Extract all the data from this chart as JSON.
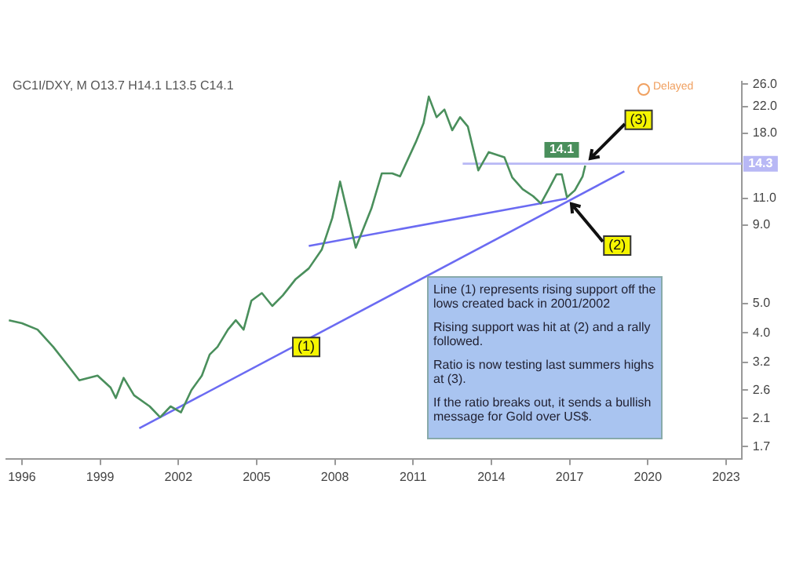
{
  "chart_data": {
    "type": "line",
    "title": "GC1I/DXY, M",
    "subtitle": "O13.7 H14.1 L13.5 C14.1",
    "log": "y",
    "legend": false,
    "grid": false,
    "marker": "none",
    "line_style": "solid",
    "tick_labels": "xy",
    "xlim": [
      1995.4,
      2023.6
    ],
    "xticks": [
      1996,
      1999,
      2002,
      2005,
      2008,
      2011,
      2014,
      2017,
      2020,
      2023
    ],
    "ylim": [
      1.55,
      26.6
    ],
    "yticks": [
      {
        "value": 1.7,
        "label": "1.7"
      },
      {
        "value": 2.1,
        "label": "2.1"
      },
      {
        "value": 2.6,
        "label": "2.6"
      },
      {
        "value": 3.2,
        "label": "3.2"
      },
      {
        "value": 4,
        "label": "4.0"
      },
      {
        "value": 5,
        "label": "5.0"
      },
      {
        "value": 9,
        "label": "9.0"
      },
      {
        "value": 11,
        "label": "11.0"
      },
      {
        "value": 18,
        "label": "18.0"
      },
      {
        "value": 22,
        "label": "22.0"
      },
      {
        "value": 26,
        "label": "26.0"
      }
    ],
    "series": [
      {
        "color": "#4a8f5c",
        "x": [
          1995.5,
          1996,
          1996.6,
          1997.2,
          1997.8,
          1998.2,
          1998.9,
          1999.4,
          1999.6,
          1999.9,
          2000.3,
          2000.9,
          2001.3,
          2001.7,
          2002.1,
          2002.5,
          2002.9,
          2003.2,
          2003.5,
          2003.9,
          2004.2,
          2004.5,
          2004.8,
          2005.2,
          2005.6,
          2006,
          2006.5,
          2007,
          2007.5,
          2007.9,
          2008.2,
          2008.8,
          2009.4,
          2009.8,
          2010.2,
          2010.5,
          2011.1,
          2011.4,
          2011.6,
          2011.9,
          2012.2,
          2012.5,
          2012.8,
          2013.1,
          2013.5,
          2013.9,
          2014.5,
          2014.8,
          2015.2,
          2015.6,
          2015.9,
          2016.2,
          2016.5,
          2016.7,
          2016.9,
          2017.2,
          2017.5,
          2017.6
        ],
        "values": [
          4.4,
          4.3,
          4.1,
          3.6,
          3.1,
          2.8,
          2.9,
          2.65,
          2.45,
          2.85,
          2.5,
          2.3,
          2.12,
          2.3,
          2.2,
          2.6,
          2.9,
          3.4,
          3.6,
          4.1,
          4.4,
          4.1,
          5.1,
          5.4,
          4.9,
          5.3,
          6,
          6.5,
          7.5,
          9.5,
          12.5,
          7.6,
          10.2,
          13.3,
          13.3,
          13,
          16.8,
          19.4,
          23.7,
          20.3,
          21.5,
          18.4,
          20.3,
          18.9,
          13.6,
          15.6,
          15,
          12.9,
          11.8,
          11.2,
          10.6,
          11.8,
          13.2,
          13.2,
          11.1,
          11.7,
          13,
          14.1
        ],
        "value_labels": [
          null,
          null,
          null,
          null,
          null,
          null,
          null,
          null,
          null,
          null,
          null,
          null,
          null,
          null,
          null,
          null,
          null,
          null,
          null,
          null,
          null,
          null,
          null,
          null,
          null,
          null,
          null,
          null,
          null,
          null,
          null,
          null,
          null,
          null,
          null,
          null,
          null,
          null,
          null,
          null,
          null,
          null,
          null,
          null,
          null,
          null,
          null,
          null,
          null,
          null,
          null,
          null,
          null,
          null,
          null,
          null,
          null,
          "14.1"
        ]
      },
      {
        "color": "#6b6bf2",
        "x": [
          2000.5,
          2019.1
        ],
        "values": [
          1.95,
          13.5
        ]
      },
      {
        "color": "#6b6bf2",
        "x": [
          2007,
          2016.9
        ],
        "values": [
          7.7,
          11
        ]
      },
      {
        "color": "#b8b8f5",
        "x": [
          2012.9,
          2023.6
        ],
        "values": [
          14.3,
          14.3
        ],
        "value_labels": [
          null,
          "14.3"
        ]
      }
    ],
    "annotations": [
      {
        "text": "(1)",
        "x": 2006.9,
        "y": 3.6
      },
      {
        "text": "(2)",
        "x": 2016.9,
        "y": 11
      },
      {
        "text": "(3)",
        "x": 2017.6,
        "y": 14.3
      },
      "Line (1) represents rising support off the lows created back in 2001/2002\n\nRising support was hit at (2) and a rally followed.\n\nRatio is now testing last summers highs at (3).\n\nIf the ratio breaks out, it sends a bullish message for Gold over US$.",
      "Delayed"
    ]
  }
}
